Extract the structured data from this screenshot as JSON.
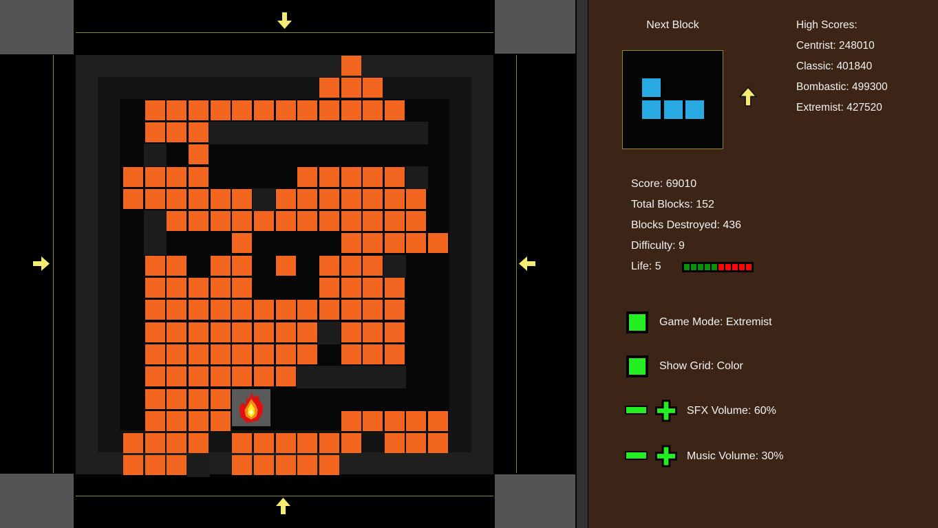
{
  "board": {
    "grid": [
      "..........O....",
      ".........OOO...",
      ".OOOOOOOOOOOO..",
      ".OOOgggggggggg.",
      ".g.O...........",
      "OOOO....OOOOOg.",
      "OOOOOOgOOOOOOO.",
      ".gOOOOOOOOOOOO.",
      ".g...O....OOOOO",
      ".OO.OO.O.OOOg..",
      ".OOOOO...OOOO..",
      ".OOOOOOOOOOOO..",
      ".OOOOOOOOgOOO..",
      ".OOOOOOOO.OOO..",
      ".OOOOOOOggggg..",
      ".OOOO..........",
      ".OOOO.....OOOOO",
      "OOOO.OOOOOO.OOO",
      "OOOg.OOOOO....."
    ],
    "fire": {
      "col": 5,
      "row": 15
    },
    "colors": {
      "block_orange": "#F2661F",
      "wall_outer": "#1F1F1F",
      "wall_inner": "#131313",
      "playfield": "#070707",
      "gray_cell": "#1C1C1C",
      "fire_bg": "#5A5A5A"
    }
  },
  "frame": {
    "corner_color": "#545454",
    "guide_line_color": "#8A8A2C",
    "arrow_color": "#F2EC72"
  },
  "panel": {
    "bg": "#3C2416",
    "next_block": {
      "title": "Next Block",
      "piece_color": "#29A9E2",
      "cells": [
        [
          0,
          0
        ],
        [
          0,
          1
        ],
        [
          1,
          1
        ],
        [
          2,
          1
        ]
      ]
    },
    "high_scores": {
      "lines": [
        "High Scores:",
        "Centrist: 248010",
        "Classic: 401840",
        "Bombastic: 499300",
        "Extremist: 427520"
      ]
    },
    "stats": [
      "Score: 69010",
      "Total Blocks: 152",
      "Blocks Destroyed: 436",
      "Difficulty: 9",
      "Life: 5"
    ],
    "life": {
      "value": 5,
      "max": 10,
      "green": "#0A930A",
      "red": "#FF0606"
    },
    "settings": {
      "game_mode_label": "Game Mode: Extremist",
      "show_grid_label": "Show Grid: Color",
      "sfx_label": "SFX Volume: 60%",
      "music_label": "Music Volume: 30%",
      "button_green": "#22EE22"
    }
  }
}
